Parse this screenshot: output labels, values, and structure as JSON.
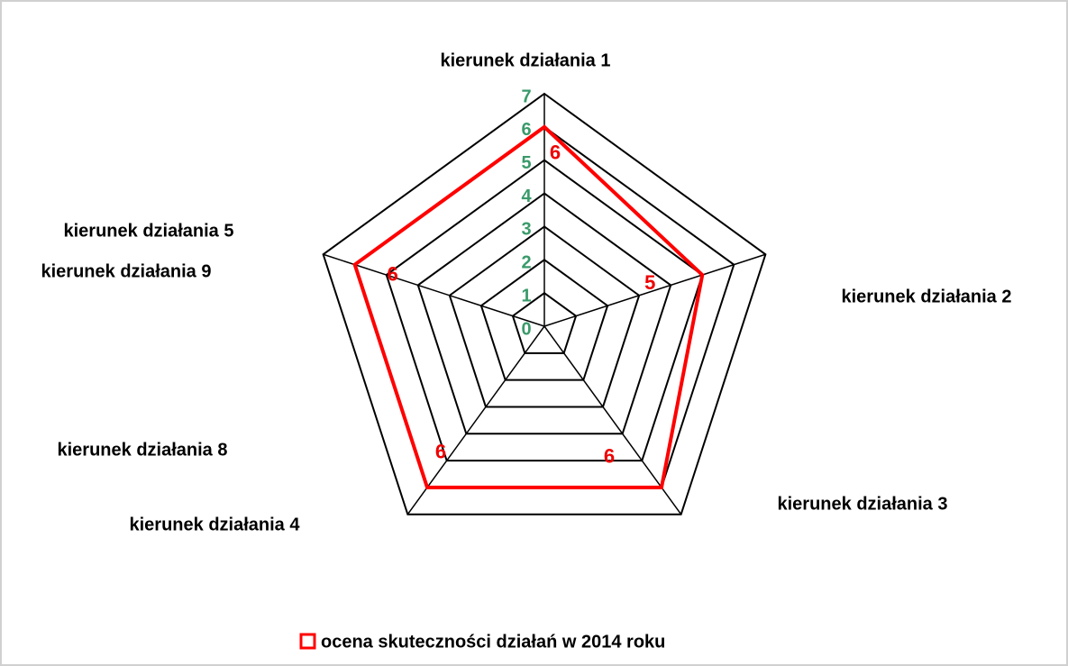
{
  "chart_data": {
    "type": "radar",
    "categories": [
      "kierunek działania 1",
      "kierunek działania 2",
      "kierunek działania 3",
      "kierunek działania 4",
      "kierunek działania 5"
    ],
    "annotations": [
      "kierunek działania 9",
      "kierunek działania 8"
    ],
    "series": [
      {
        "name": "ocena skuteczności działań w 2014 roku",
        "color": "#ff0000",
        "values": [
          6,
          5,
          6,
          6,
          6
        ]
      }
    ],
    "ylim": [
      0,
      7
    ],
    "yticks": [
      0,
      1,
      2,
      3,
      4,
      5,
      6,
      7
    ],
    "grid": true,
    "legend": "bottom"
  }
}
